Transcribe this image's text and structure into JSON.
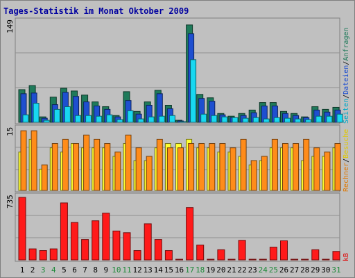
{
  "chart_data": {
    "type": "bar",
    "title": "Tages-Statistik im Monat Oktober 2009",
    "days": [
      "1",
      "2",
      "3",
      "4",
      "5",
      "6",
      "7",
      "8",
      "9",
      "10",
      "11",
      "12",
      "13",
      "14",
      "15",
      "16",
      "17",
      "18",
      "19",
      "20",
      "21",
      "22",
      "23",
      "24",
      "25",
      "26",
      "27",
      "28",
      "29",
      "30",
      "31"
    ],
    "weekend_days": [
      "3",
      "4",
      "10",
      "11",
      "17",
      "18",
      "24",
      "25",
      "31"
    ],
    "top_panel": {
      "ymax_label": "149",
      "ylim": [
        0,
        149
      ],
      "legend": [
        "Seiten",
        "Dateien",
        "Anfragen"
      ],
      "legend_separator": "/",
      "series": [
        {
          "name": "Anfragen",
          "color": "#1f7a5a",
          "values": [
            48,
            54,
            8,
            37,
            50,
            46,
            40,
            30,
            23,
            10,
            45,
            16,
            30,
            47,
            25,
            3,
            143,
            41,
            36,
            13,
            9,
            13,
            18,
            29,
            29,
            16,
            13,
            8,
            23,
            19,
            22
          ]
        },
        {
          "name": "Dateien",
          "color": "#1e4fd0",
          "values": [
            42,
            43,
            6,
            26,
            44,
            38,
            30,
            24,
            19,
            8,
            32,
            12,
            25,
            42,
            20,
            2,
            130,
            35,
            31,
            11,
            7,
            10,
            14,
            24,
            24,
            13,
            10,
            7,
            18,
            15,
            18
          ]
        },
        {
          "name": "Seiten",
          "color": "#18d8f0",
          "values": [
            11,
            28,
            3,
            19,
            23,
            10,
            10,
            9,
            11,
            4,
            17,
            5,
            8,
            9,
            10,
            1,
            92,
            12,
            10,
            8,
            7,
            6,
            7,
            5,
            7,
            6,
            5,
            4,
            9,
            9,
            12
          ]
        }
      ]
    },
    "mid_panel": {
      "ymax_label": "15",
      "ylim": [
        0,
        15
      ],
      "legend": [
        "Rechner",
        "Besuche"
      ],
      "legend_separator": "/",
      "series": [
        {
          "name": "Besuche",
          "color": "#ffff30",
          "values": [
            9,
            12,
            5,
            10,
            9,
            11,
            10,
            10,
            10,
            8,
            11,
            7,
            7,
            10,
            11,
            11,
            12,
            10,
            10,
            9,
            9,
            8,
            6,
            7,
            10,
            10,
            10,
            7,
            8,
            8,
            10
          ]
        },
        {
          "name": "Rechner",
          "color": "#ff8c1a",
          "values": [
            14,
            14,
            6,
            11,
            12,
            11,
            13,
            12,
            11,
            9,
            13,
            10,
            8,
            12,
            10,
            10,
            11,
            11,
            11,
            11,
            10,
            12,
            7,
            8,
            12,
            11,
            11,
            12,
            10,
            9,
            11
          ]
        }
      ]
    },
    "bottom_panel": {
      "ymax_label": "735",
      "ylim": [
        0,
        735
      ],
      "legend": [
        "kB"
      ],
      "series": [
        {
          "name": "kB",
          "color": "#ff1a1a",
          "values": [
            735,
            130,
            110,
            130,
            670,
            440,
            240,
            460,
            550,
            340,
            320,
            110,
            425,
            240,
            110,
            5,
            615,
            175,
            5,
            120,
            5,
            230,
            5,
            5,
            150,
            225,
            5,
            5,
            120,
            5,
            100
          ]
        }
      ]
    }
  }
}
